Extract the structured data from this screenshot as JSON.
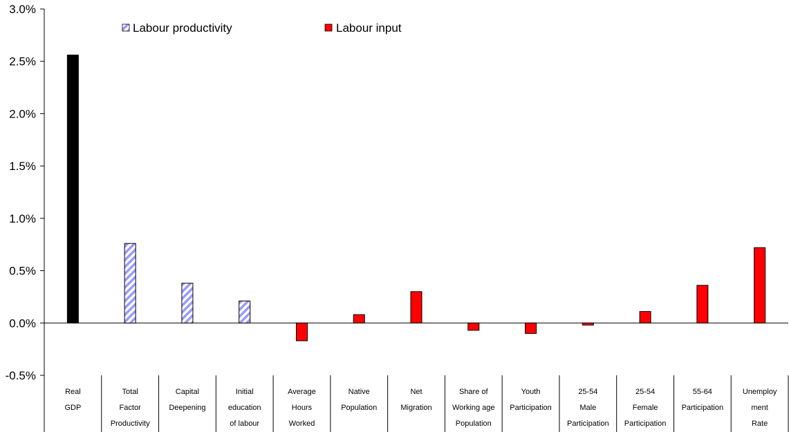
{
  "chart_data": {
    "type": "bar",
    "categories": [
      [
        "Real",
        "GDP"
      ],
      [
        "Total",
        "Factor",
        "Productivity"
      ],
      [
        "Capital",
        "Deepening"
      ],
      [
        "Initial",
        "education",
        "of labour"
      ],
      [
        "Average",
        "Hours",
        "Worked"
      ],
      [
        "Native",
        "Population"
      ],
      [
        "Net",
        "Migration"
      ],
      [
        "Share of",
        "Working age",
        "Population"
      ],
      [
        "Youth",
        "Participation"
      ],
      [
        "25-54",
        "Male",
        "Participation"
      ],
      [
        "25-54",
        "Female",
        "Participation"
      ],
      [
        "55-64",
        "Participation"
      ],
      [
        "Unemploy",
        "ment",
        "Rate"
      ]
    ],
    "values": [
      2.56,
      0.76,
      0.38,
      0.21,
      -0.17,
      0.08,
      0.3,
      -0.07,
      -0.1,
      -0.02,
      0.11,
      0.36,
      0.72
    ],
    "value_groups": [
      "total",
      "Labour productivity",
      "Labour productivity",
      "Labour productivity",
      "Labour input",
      "Labour input",
      "Labour input",
      "Labour input",
      "Labour input",
      "Labour input",
      "Labour input",
      "Labour input",
      "Labour input"
    ],
    "series": [
      {
        "name": "Labour productivity",
        "color": "#9999ff",
        "pattern": "diagonal-hatch"
      },
      {
        "name": "Labour input",
        "color": "#ff0000",
        "pattern": "solid"
      }
    ],
    "total_color": "#000000",
    "ylim": [
      -0.5,
      3.0
    ],
    "yticks": [
      -0.5,
      0.0,
      0.5,
      1.0,
      1.5,
      2.0,
      2.5,
      3.0
    ],
    "ytick_labels": [
      "-0.5%",
      "0.0%",
      "0.5%",
      "1.0%",
      "1.5%",
      "2.0%",
      "2.5%",
      "3.0%"
    ],
    "title": "",
    "xlabel": "",
    "ylabel": "",
    "grid": false,
    "legend_position": "top"
  }
}
